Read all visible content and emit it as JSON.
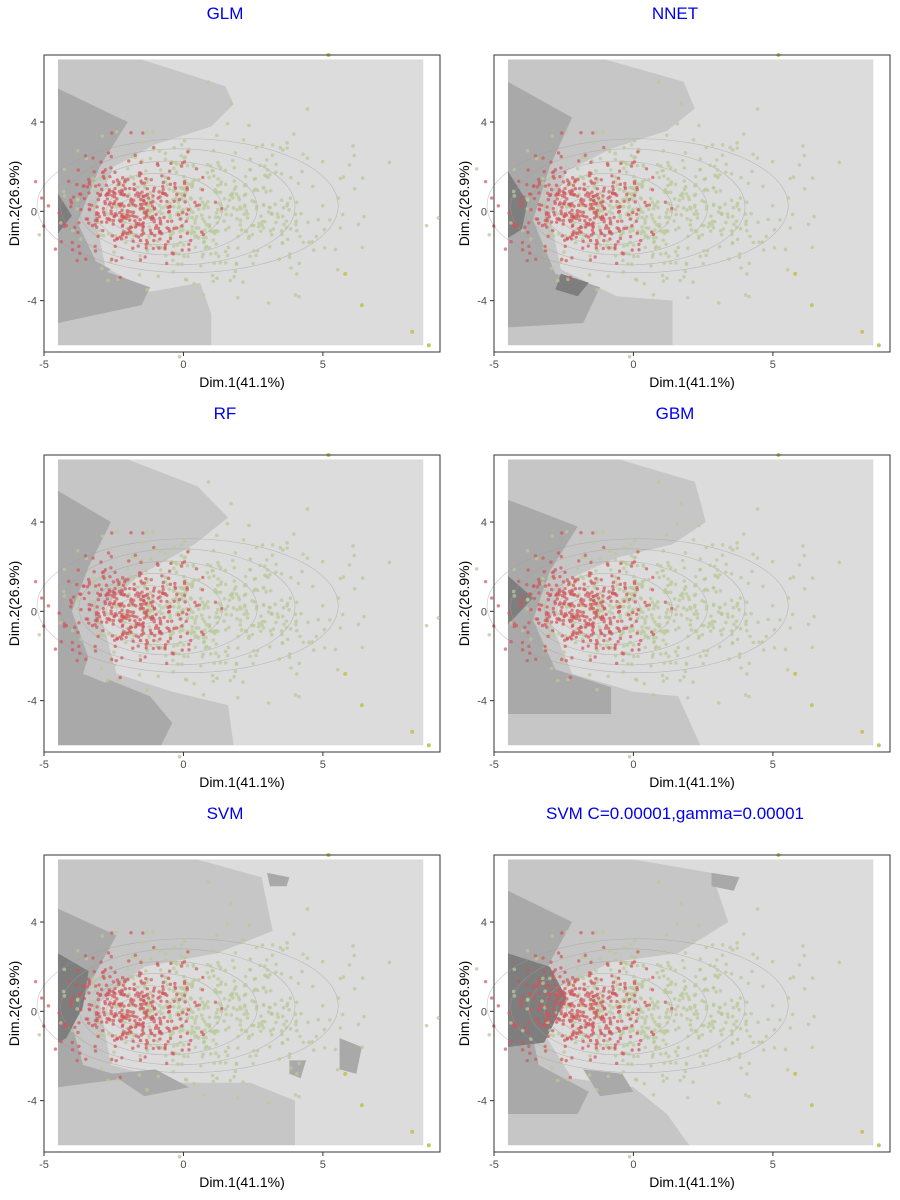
{
  "colors": {
    "title": "#0000EE",
    "region_light": "#DCDCDC",
    "region_mid": "#C6C6C6",
    "region_dark": "#A9A9A9",
    "region_darkest": "#7E7E7E",
    "class_red": "#D0555A",
    "class_green": "#B9C99A",
    "class_olive": "#C8C36A",
    "contour": "#9E9E9E"
  },
  "shared_axes": {
    "xlabel": "Dim.1(41.1%)",
    "ylabel": "Dim.2(26.9%)",
    "xlim": [
      -5.0,
      9.2
    ],
    "ylim": [
      -6.3,
      7.0
    ],
    "xticks": [
      -5,
      0,
      5
    ],
    "yticks": [
      -4,
      0,
      4
    ],
    "xtick_labels": [
      "-5",
      "0",
      "5"
    ],
    "ytick_labels": [
      "-4",
      "0",
      "4"
    ]
  },
  "chart_data": [
    {
      "type": "scatter",
      "title": "GLM",
      "xlabel": "Dim.1(41.1%)",
      "ylabel": "Dim.2(26.9%)",
      "xlim": [
        -5.0,
        9.2
      ],
      "ylim": [
        -6.3,
        7.0
      ],
      "background_region": {
        "x": [
          -4.5,
          8.6
        ],
        "y": [
          -6.0,
          6.8
        ]
      },
      "decision_regions": [
        {
          "shade": "mid",
          "points": [
            [
              -4.5,
              6.8
            ],
            [
              -1.5,
              6.8
            ],
            [
              1.5,
              5.6
            ],
            [
              1.8,
              4.8
            ],
            [
              1.0,
              3.8
            ],
            [
              -1.0,
              3.0
            ],
            [
              -2.5,
              2.0
            ],
            [
              -3.2,
              0.0
            ],
            [
              -2.8,
              -2.5
            ],
            [
              -1.2,
              -3.6
            ],
            [
              0.6,
              -3.2
            ],
            [
              1.0,
              -4.6
            ],
            [
              1.0,
              -6.0
            ],
            [
              -4.5,
              -6.0
            ]
          ]
        },
        {
          "shade": "dark",
          "points": [
            [
              -4.5,
              5.5
            ],
            [
              -2.0,
              4.0
            ],
            [
              -3.0,
              2.0
            ],
            [
              -3.8,
              -0.5
            ],
            [
              -3.0,
              -2.6
            ],
            [
              -1.2,
              -3.4
            ],
            [
              -1.5,
              -4.2
            ],
            [
              -4.5,
              -5.0
            ]
          ]
        },
        {
          "shade": "darkest",
          "points": [
            [
              -4.5,
              0.8
            ],
            [
              -4.0,
              -0.2
            ],
            [
              -4.5,
              -1.0
            ]
          ]
        },
        {
          "shade": "dark",
          "points": [
            [
              -3.2,
              -2.2
            ],
            [
              -2.6,
              -2.6
            ],
            [
              -3.1,
              -3.0
            ],
            [
              -3.4,
              -2.6
            ]
          ]
        }
      ],
      "annotations": []
    },
    {
      "type": "scatter",
      "title": "NNET",
      "xlabel": "Dim.1(41.1%)",
      "ylabel": "Dim.2(26.9%)",
      "xlim": [
        -5.0,
        9.2
      ],
      "ylim": [
        -6.3,
        7.0
      ],
      "background_region": {
        "x": [
          -4.5,
          8.6
        ],
        "y": [
          -6.0,
          6.8
        ]
      },
      "decision_regions": [
        {
          "shade": "mid",
          "points": [
            [
              -4.5,
              6.8
            ],
            [
              -1.0,
              6.8
            ],
            [
              1.8,
              5.8
            ],
            [
              2.2,
              4.6
            ],
            [
              1.2,
              3.6
            ],
            [
              -0.8,
              2.8
            ],
            [
              -2.4,
              1.8
            ],
            [
              -3.0,
              -0.2
            ],
            [
              -2.6,
              -2.6
            ],
            [
              -0.6,
              -3.8
            ],
            [
              1.4,
              -4.0
            ],
            [
              1.4,
              -6.0
            ],
            [
              -4.5,
              -6.0
            ]
          ]
        },
        {
          "shade": "dark",
          "points": [
            [
              -4.5,
              5.8
            ],
            [
              -2.2,
              4.2
            ],
            [
              -3.0,
              2.0
            ],
            [
              -3.6,
              -0.4
            ],
            [
              -2.8,
              -2.8
            ],
            [
              -1.2,
              -3.4
            ],
            [
              -1.8,
              -5.0
            ],
            [
              -4.5,
              -5.2
            ]
          ]
        },
        {
          "shade": "darkest",
          "points": [
            [
              -4.5,
              1.8
            ],
            [
              -3.8,
              0.4
            ],
            [
              -4.0,
              -0.8
            ],
            [
              -4.5,
              -1.2
            ]
          ]
        },
        {
          "shade": "darkest",
          "points": [
            [
              -2.6,
              -2.8
            ],
            [
              -1.6,
              -3.2
            ],
            [
              -2.0,
              -3.8
            ],
            [
              -2.8,
              -3.5
            ]
          ]
        }
      ],
      "annotations": []
    },
    {
      "type": "scatter",
      "title": "RF",
      "xlabel": "Dim.1(41.1%)",
      "ylabel": "Dim.2(26.9%)",
      "xlim": [
        -5.0,
        9.2
      ],
      "ylim": [
        -6.3,
        7.0
      ],
      "background_region": {
        "x": [
          -4.5,
          8.6
        ],
        "y": [
          -6.0,
          6.8
        ]
      },
      "decision_regions": [
        {
          "shade": "mid",
          "points": [
            [
              -4.5,
              6.8
            ],
            [
              -2.0,
              6.8
            ],
            [
              0.5,
              5.6
            ],
            [
              1.6,
              4.2
            ],
            [
              0.4,
              3.0
            ],
            [
              -1.6,
              1.6
            ],
            [
              -3.0,
              0.0
            ],
            [
              -2.4,
              -2.8
            ],
            [
              -0.4,
              -3.6
            ],
            [
              1.6,
              -4.2
            ],
            [
              1.8,
              -6.0
            ],
            [
              -4.5,
              -6.0
            ]
          ]
        },
        {
          "shade": "dark",
          "points": [
            [
              -4.5,
              5.4
            ],
            [
              -2.6,
              4.0
            ],
            [
              -3.4,
              2.0
            ],
            [
              -4.0,
              0.0
            ],
            [
              -3.2,
              -2.8
            ],
            [
              -1.2,
              -3.8
            ],
            [
              -0.4,
              -5.0
            ],
            [
              -0.8,
              -6.0
            ],
            [
              -4.5,
              -6.0
            ]
          ]
        },
        {
          "shade": "mid",
          "points": [
            [
              -3.4,
              -2.0
            ],
            [
              -2.4,
              -2.4
            ],
            [
              -2.8,
              -3.2
            ],
            [
              -3.6,
              -2.8
            ]
          ]
        }
      ],
      "annotations": []
    },
    {
      "type": "scatter",
      "title": "GBM",
      "xlabel": "Dim.1(41.1%)",
      "ylabel": "Dim.2(26.9%)",
      "xlim": [
        -5.0,
        9.2
      ],
      "ylim": [
        -6.3,
        7.0
      ],
      "background_region": {
        "x": [
          -4.5,
          8.6
        ],
        "y": [
          -6.0,
          6.8
        ]
      },
      "decision_regions": [
        {
          "shade": "mid",
          "points": [
            [
              -4.5,
              6.8
            ],
            [
              -0.5,
              6.8
            ],
            [
              2.2,
              5.8
            ],
            [
              2.6,
              4.0
            ],
            [
              1.4,
              3.0
            ],
            [
              -0.6,
              2.4
            ],
            [
              -2.4,
              1.4
            ],
            [
              -3.0,
              -0.4
            ],
            [
              -2.2,
              -2.8
            ],
            [
              0.0,
              -3.6
            ],
            [
              1.6,
              -3.8
            ],
            [
              2.4,
              -6.0
            ],
            [
              -4.5,
              -6.0
            ]
          ]
        },
        {
          "shade": "dark",
          "points": [
            [
              -4.5,
              5.0
            ],
            [
              -2.0,
              3.8
            ],
            [
              -3.0,
              1.8
            ],
            [
              -3.6,
              -0.4
            ],
            [
              -2.8,
              -2.6
            ],
            [
              -0.8,
              -3.4
            ],
            [
              -0.8,
              -4.6
            ],
            [
              -4.5,
              -4.6
            ]
          ]
        },
        {
          "shade": "darkest",
          "points": [
            [
              -4.5,
              1.6
            ],
            [
              -3.6,
              0.6
            ],
            [
              -4.5,
              -0.6
            ]
          ]
        }
      ],
      "annotations": []
    },
    {
      "type": "scatter",
      "title": "SVM",
      "xlabel": "Dim.1(41.1%)",
      "ylabel": "Dim.2(26.9%)",
      "xlim": [
        -5.0,
        9.2
      ],
      "ylim": [
        -6.3,
        7.0
      ],
      "background_region": {
        "x": [
          -4.5,
          8.6
        ],
        "y": [
          -6.0,
          6.8
        ]
      },
      "decision_regions": [
        {
          "shade": "mid",
          "points": [
            [
              -4.5,
              6.8
            ],
            [
              0.5,
              6.8
            ],
            [
              2.8,
              6.0
            ],
            [
              3.2,
              3.6
            ],
            [
              1.2,
              2.6
            ],
            [
              -1.4,
              2.0
            ],
            [
              -3.0,
              0.4
            ],
            [
              -2.6,
              -2.4
            ],
            [
              -0.2,
              -3.2
            ],
            [
              2.4,
              -3.2
            ],
            [
              4.0,
              -4.0
            ],
            [
              4.0,
              -6.0
            ],
            [
              -4.5,
              -6.0
            ]
          ]
        },
        {
          "shade": "dark",
          "points": [
            [
              -4.5,
              4.6
            ],
            [
              -2.4,
              3.4
            ],
            [
              -3.2,
              1.6
            ],
            [
              -4.0,
              -0.6
            ],
            [
              -3.6,
              -2.4
            ],
            [
              -2.0,
              -3.0
            ],
            [
              -4.5,
              -3.4
            ]
          ]
        },
        {
          "shade": "darkest",
          "points": [
            [
              -4.5,
              2.6
            ],
            [
              -3.4,
              1.8
            ],
            [
              -3.6,
              0.2
            ],
            [
              -4.2,
              -1.2
            ],
            [
              -4.5,
              -1.4
            ]
          ]
        },
        {
          "shade": "dark",
          "points": [
            [
              3.0,
              6.2
            ],
            [
              3.8,
              6.0
            ],
            [
              3.7,
              5.6
            ],
            [
              3.1,
              5.6
            ]
          ]
        },
        {
          "shade": "dark",
          "points": [
            [
              -2.6,
              -2.8
            ],
            [
              -1.0,
              -2.6
            ],
            [
              0.2,
              -3.4
            ],
            [
              -1.4,
              -3.8
            ]
          ]
        },
        {
          "shade": "dark",
          "points": [
            [
              5.6,
              -1.2
            ],
            [
              6.4,
              -1.6
            ],
            [
              6.2,
              -2.8
            ],
            [
              5.6,
              -2.6
            ]
          ]
        },
        {
          "shade": "dark",
          "points": [
            [
              3.8,
              -2.2
            ],
            [
              4.4,
              -2.2
            ],
            [
              4.2,
              -3.0
            ],
            [
              3.8,
              -2.8
            ]
          ]
        }
      ],
      "annotations": []
    },
    {
      "type": "scatter",
      "title": "SVM C=0.00001,gamma=0.00001",
      "xlabel": "Dim.1(41.1%)",
      "ylabel": "Dim.2(26.9%)",
      "xlim": [
        -5.0,
        9.2
      ],
      "ylim": [
        -6.3,
        7.0
      ],
      "background_region": {
        "x": [
          -4.5,
          8.6
        ],
        "y": [
          -6.0,
          6.8
        ]
      },
      "decision_regions": [
        {
          "shade": "mid",
          "points": [
            [
              -4.5,
              6.8
            ],
            [
              0.0,
              6.8
            ],
            [
              2.8,
              6.2
            ],
            [
              3.4,
              4.0
            ],
            [
              1.6,
              2.6
            ],
            [
              -0.8,
              2.2
            ],
            [
              -2.8,
              1.0
            ],
            [
              -3.2,
              -1.0
            ],
            [
              -2.2,
              -3.0
            ],
            [
              0.0,
              -3.4
            ],
            [
              1.2,
              -4.6
            ],
            [
              2.0,
              -6.0
            ],
            [
              -4.5,
              -6.0
            ]
          ]
        },
        {
          "shade": "dark",
          "points": [
            [
              -4.5,
              5.4
            ],
            [
              -2.2,
              4.0
            ],
            [
              -3.0,
              2.2
            ],
            [
              -3.8,
              0.0
            ],
            [
              -3.4,
              -2.4
            ],
            [
              -1.6,
              -3.6
            ],
            [
              -2.0,
              -4.6
            ],
            [
              -4.5,
              -4.6
            ]
          ]
        },
        {
          "shade": "darkest",
          "points": [
            [
              -4.5,
              2.6
            ],
            [
              -3.0,
              2.0
            ],
            [
              -2.4,
              0.6
            ],
            [
              -3.2,
              -1.4
            ],
            [
              -4.5,
              -1.6
            ]
          ]
        },
        {
          "shade": "dark",
          "points": [
            [
              2.8,
              6.2
            ],
            [
              3.8,
              6.0
            ],
            [
              3.6,
              5.4
            ],
            [
              2.8,
              5.6
            ]
          ]
        },
        {
          "shade": "dark",
          "points": [
            [
              -1.8,
              -2.6
            ],
            [
              -0.4,
              -2.8
            ],
            [
              0.0,
              -3.6
            ],
            [
              -1.2,
              -3.8
            ]
          ]
        }
      ],
      "annotations": []
    }
  ]
}
